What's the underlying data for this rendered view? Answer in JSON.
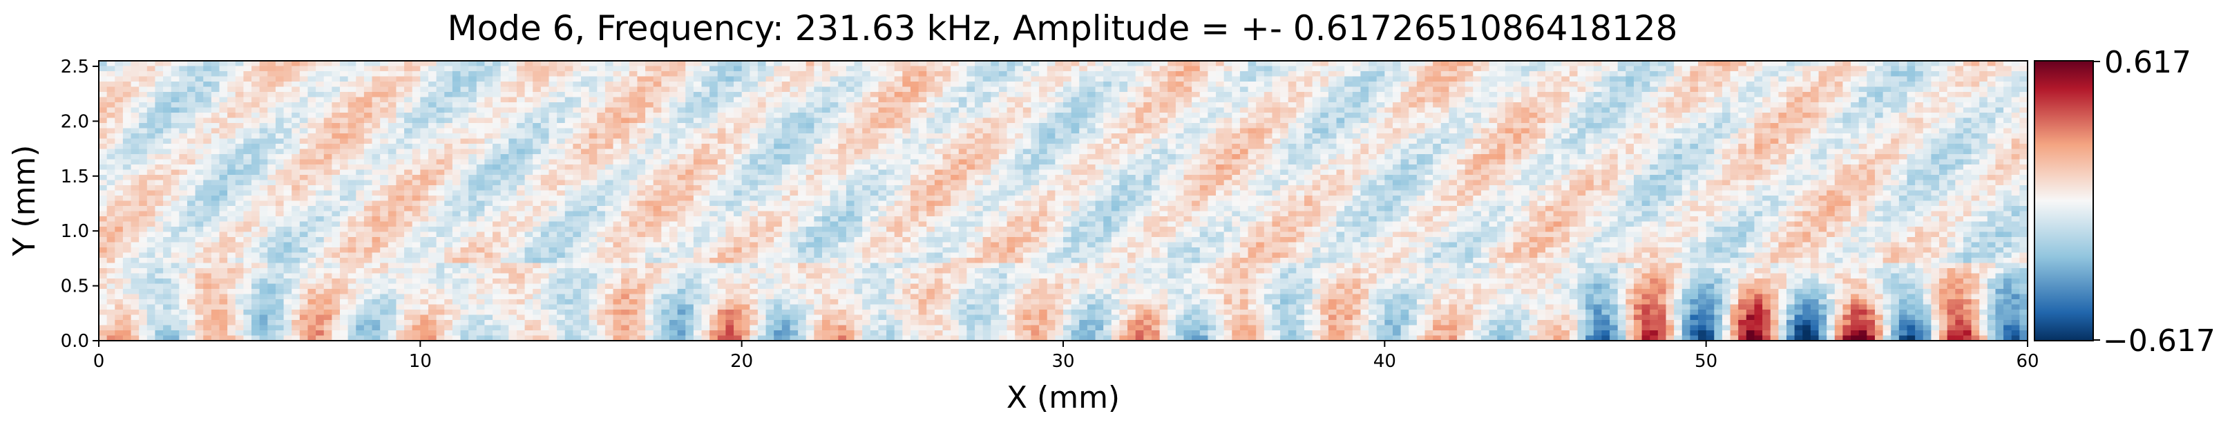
{
  "chart_data": {
    "type": "heatmap",
    "title": "Mode 6, Frequency: 231.63 kHz, Amplitude = +- 0.6172651086418128",
    "xlabel": "X (mm)",
    "ylabel": "Y (mm)",
    "xlim": [
      0,
      60
    ],
    "ylim": [
      0,
      2.55
    ],
    "xticks": [
      "0",
      "10",
      "20",
      "30",
      "40",
      "50",
      "60"
    ],
    "yticks": [
      "0.0",
      "0.5",
      "1.0",
      "1.5",
      "2.0",
      "2.5"
    ],
    "colormap": "RdBu_r",
    "vmin": -0.617,
    "vmax": 0.617,
    "colorbar_ticks": [
      "0.617",
      "−0.617"
    ],
    "colors": {
      "min": "#053061",
      "low": "#2166ac",
      "midlow": "#92c5de",
      "zero": "#f7f7f7",
      "midhigh": "#f4a582",
      "high": "#b2182b",
      "max": "#67001f"
    },
    "regions": [
      {
        "x": [
          0,
          60
        ],
        "y": [
          0.7,
          2.55
        ],
        "pattern": "diagonal streaks",
        "level": 0.15
      },
      {
        "x": [
          46,
          60
        ],
        "y": [
          0.0,
          0.7
        ],
        "pattern": "alternating vertical lobes",
        "level": 0.9
      },
      {
        "x": [
          0,
          46
        ],
        "y": [
          0.0,
          0.7
        ],
        "pattern": "alternating vertical lobes",
        "level": 0.4
      }
    ]
  }
}
